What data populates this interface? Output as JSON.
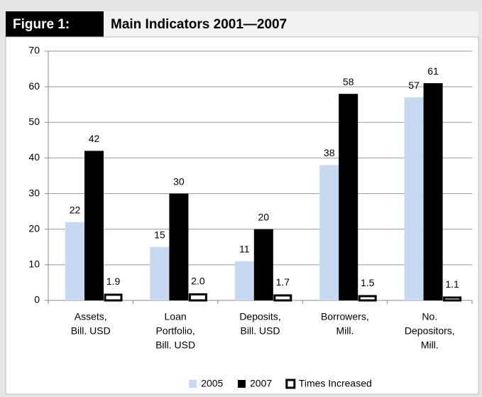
{
  "chart_data": {
    "type": "bar",
    "figure_label": "Figure 1:",
    "title": "Main Indicators 2001—2007",
    "categories": [
      [
        "Assets,",
        "Bill. USD"
      ],
      [
        "Loan",
        "Portfolio,",
        "Bill. USD"
      ],
      [
        "Deposits,",
        "Bill. USD"
      ],
      [
        "Borrowers,",
        "Mill."
      ],
      [
        "No.",
        "Depositors,",
        "Mill."
      ]
    ],
    "series": [
      {
        "name": "2005",
        "color": "#c6d9f1",
        "values": [
          22,
          15,
          11,
          38,
          57
        ]
      },
      {
        "name": "2007",
        "color": "#000000",
        "values": [
          42,
          30,
          20,
          58,
          61
        ]
      },
      {
        "name": "Times Increased",
        "color": "#ffffff",
        "edgecolor": "#000000",
        "values": [
          1.9,
          2.0,
          1.7,
          1.5,
          1.1
        ],
        "value_labels": [
          "1.9",
          "2.0",
          "1.7",
          "1.5",
          "1.1"
        ]
      }
    ],
    "ylim": [
      0,
      70
    ],
    "yticks": [
      0,
      10,
      20,
      30,
      40,
      50,
      60,
      70
    ],
    "grid": true,
    "legend": "bottom"
  }
}
